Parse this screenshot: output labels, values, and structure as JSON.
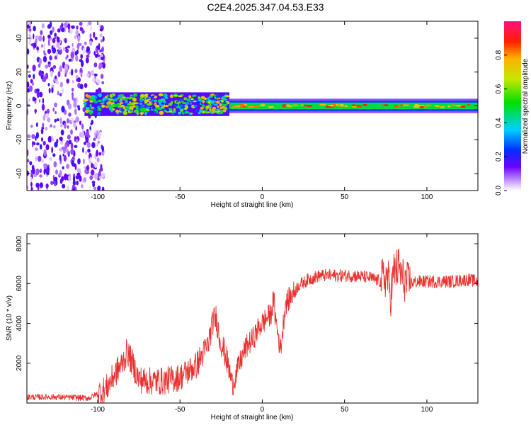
{
  "title": "C2E4.2025.347.04.53.E33",
  "chart_data": [
    {
      "type": "heatmap",
      "xlabel": "Height of straight line (km)",
      "ylabel": "Frequency (Hz)",
      "xlim": [
        -143,
        131
      ],
      "ylim": [
        -50,
        50
      ],
      "x_ticks": [
        -100,
        -50,
        0,
        50,
        100
      ],
      "y_ticks": [
        -40,
        -20,
        0,
        20,
        40
      ],
      "colorbar": {
        "label": "Normalized spectral amplitude",
        "range": [
          0,
          1
        ],
        "ticks": [
          0.0,
          0.2,
          0.4,
          0.6,
          0.8
        ]
      },
      "band_segments": [
        {
          "x": [
            -143,
            -96
          ],
          "center_hz": 0,
          "spread_hz": 50,
          "amplitude": 0.15
        },
        {
          "x": [
            -108,
            -20
          ],
          "center_hz": 1,
          "spread_hz": 7,
          "amplitude": 0.45
        },
        {
          "x": [
            -20,
            131
          ],
          "center_hz": 0,
          "spread_hz": 3,
          "amplitude": 0.55
        }
      ]
    },
    {
      "type": "line",
      "xlabel": "Height of straight line (km)",
      "ylabel": "SNR (10 * v/v)",
      "xlim": [
        -143,
        131
      ],
      "ylim": [
        0,
        8500
      ],
      "x_ticks": [
        -100,
        -50,
        0,
        50,
        100
      ],
      "y_ticks": [
        2000,
        4000,
        6000,
        8000
      ],
      "color": "#e8312f",
      "series": [
        {
          "x": [
            -143,
            -125,
            -105,
            -95,
            -90,
            -85,
            -82,
            -78,
            -75,
            -70,
            -60,
            -50,
            -40,
            -33,
            -30,
            -28,
            -26,
            -22,
            -18,
            -15,
            -10,
            -7,
            -5,
            -2,
            0,
            3,
            5,
            7,
            8,
            10,
            11,
            12,
            14,
            18,
            22,
            28,
            35,
            45,
            55,
            65,
            72,
            76,
            78,
            80,
            83,
            85,
            88,
            95,
            105,
            115,
            125,
            131
          ],
          "y": [
            300,
            300,
            250,
            700,
            1400,
            2000,
            2600,
            1800,
            1200,
            1100,
            1100,
            1300,
            1900,
            2900,
            4100,
            4300,
            3300,
            2300,
            900,
            1700,
            2800,
            3100,
            3300,
            3800,
            4000,
            4300,
            4400,
            5200,
            4300,
            3200,
            2700,
            3300,
            5000,
            5400,
            5900,
            6200,
            6400,
            6400,
            6400,
            6300,
            6100,
            6400,
            5400,
            6600,
            6800,
            6300,
            6000,
            6100,
            6100,
            6100,
            6200,
            6100
          ]
        }
      ]
    }
  ]
}
